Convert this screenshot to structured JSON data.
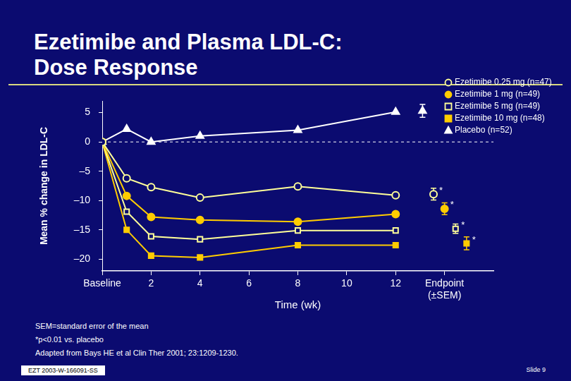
{
  "chart_data": {
    "type": "line",
    "title": "Ezetimibe and Plasma LDL-C:\nDose Response",
    "x_label": "Time (wk)",
    "y_label": "Mean % change in LDL-C",
    "x": [
      0,
      1,
      2,
      4,
      8,
      12
    ],
    "xlim": [
      0,
      16
    ],
    "xticks": [
      {
        "value": 0,
        "label": "Baseline"
      },
      2,
      4,
      6,
      8,
      10,
      12,
      {
        "value": 14,
        "label": "Endpoint\n(±SEM)"
      }
    ],
    "ylim": [
      -22,
      7
    ],
    "yticks": [
      {
        "value": -20,
        "label": "–20"
      },
      {
        "value": -15,
        "label": "–15"
      },
      {
        "value": -10,
        "label": "–10"
      },
      {
        "value": -5,
        "label": "–5"
      },
      0,
      5
    ],
    "grid": false,
    "legend": "top-right",
    "annotations": [
      {
        "type": "hline",
        "y": 0,
        "line_style": "dashed"
      }
    ],
    "series": [
      {
        "name": "Ezetimibe 0.25 mg (n=47)",
        "color": "#ffff99",
        "marker": "circle_open",
        "values": [
          0,
          -6.2,
          -7.7,
          -9.5,
          -7.6,
          -9.1
        ],
        "endpoint": -8.9,
        "endpoint_sem": 1.0,
        "endpoint_label": "*"
      },
      {
        "name": "Ezetimibe 1 mg (n=49)",
        "color": "#ffcc00",
        "marker": "circle",
        "values": [
          0,
          -9.2,
          -12.8,
          -13.3,
          -13.6,
          -12.3
        ],
        "endpoint": -11.4,
        "endpoint_sem": 1.0,
        "endpoint_label": "*"
      },
      {
        "name": "Ezetimibe 5 mg (n=49)",
        "color": "#ffff99",
        "marker": "square_open",
        "values": [
          0,
          -11.9,
          -16.1,
          -16.6,
          -15.1,
          -15.1
        ],
        "endpoint": -14.8,
        "endpoint_sem": 0.8,
        "endpoint_label": "*"
      },
      {
        "name": "Ezetimibe 10 mg (n=48)",
        "color": "#ffcc00",
        "marker": "square",
        "values": [
          0,
          -15.0,
          -19.4,
          -19.7,
          -17.6,
          -17.6
        ],
        "endpoint": -17.3,
        "endpoint_sem": 1.1,
        "endpoint_label": "*"
      },
      {
        "name": "Placebo (n=52)",
        "color": "#ffffff",
        "marker": "triangle",
        "values": [
          0,
          2.2,
          0,
          1.0,
          2.0,
          5.1
        ],
        "endpoint": 5.3,
        "endpoint_sem": 1.1
      }
    ]
  },
  "footnotes": [
    "SEM=standard error of the mean",
    "*p<0.01 vs. placebo",
    "Adapted from Bays HE et al Clin Ther 2001; 23:1209-1230."
  ],
  "footer_code": "EZT 2003-W-166091-SS",
  "slide_number": "Slide 9"
}
